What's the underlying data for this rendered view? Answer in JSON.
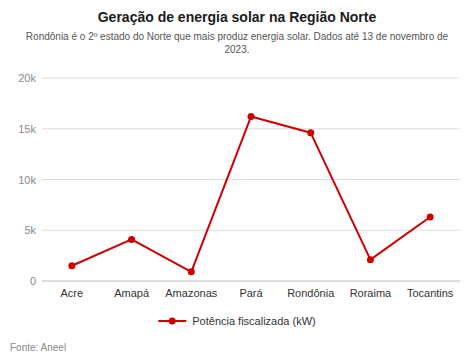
{
  "chart_data": {
    "type": "line",
    "title": "Geração de energia solar na Região Norte",
    "subtitle": "Rondônia é o 2º estado do Norte que mais produz energia solar. Dados até 13 de novembro de 2023.",
    "source": "Fonte: Aneel",
    "categories": [
      "Acre",
      "Amapá",
      "Amazonas",
      "Pará",
      "Rondônia",
      "Roraima",
      "Tocantins"
    ],
    "series": [
      {
        "name": "Potência fiscalizada (kW)",
        "color": "#cc0000",
        "marker": "circle",
        "values": [
          1500,
          4100,
          900,
          16200,
          14600,
          2100,
          6300
        ]
      }
    ],
    "ylim": [
      0,
      20000
    ],
    "yticks": [
      0,
      {
        "value": 5000,
        "label": "5k"
      },
      {
        "value": 10000,
        "label": "10k"
      },
      {
        "value": 15000,
        "label": "15k"
      },
      {
        "value": 20000,
        "label": "20k"
      }
    ],
    "grid": true,
    "legend": "bottom"
  }
}
